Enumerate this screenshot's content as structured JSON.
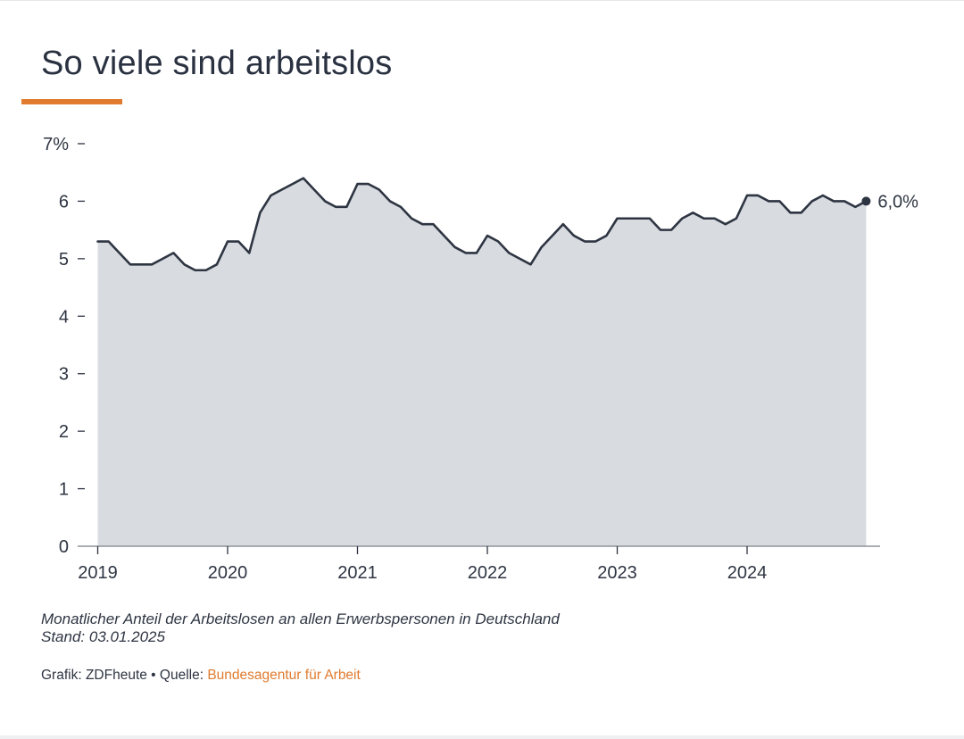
{
  "title": "So viele sind arbeitslos",
  "note": {
    "line1": "Monatlicher Anteil der Arbeitslosen an allen Erwerbspersonen in Deutschland",
    "line2": "Stand: 03.01.2025"
  },
  "source": {
    "prefix": "Grafik: ZDFheute • Quelle: ",
    "link_text": "Bundesagentur für Arbeit"
  },
  "colors": {
    "accent": "#e07b2f",
    "line": "#2e3542",
    "area": "#d8dbe0"
  },
  "chart_data": {
    "type": "area",
    "ylim": [
      0,
      7
    ],
    "y_ticks": [
      {
        "value": 7,
        "label": "7%"
      },
      {
        "value": 6,
        "label": "6"
      },
      {
        "value": 5,
        "label": "5"
      },
      {
        "value": 4,
        "label": "4"
      },
      {
        "value": 3,
        "label": "3"
      },
      {
        "value": 2,
        "label": "2"
      },
      {
        "value": 1,
        "label": "1"
      },
      {
        "value": 0,
        "label": "0"
      }
    ],
    "x_ticks": [
      "2019",
      "2020",
      "2021",
      "2022",
      "2023",
      "2024"
    ],
    "x_start": "2019-01",
    "grid": false,
    "end_label": "6,0%",
    "values": [
      5.3,
      5.3,
      5.1,
      4.9,
      4.9,
      4.9,
      5.0,
      5.1,
      4.9,
      4.8,
      4.8,
      4.9,
      5.3,
      5.3,
      5.1,
      5.8,
      6.1,
      6.2,
      6.3,
      6.4,
      6.2,
      6.0,
      5.9,
      5.9,
      6.3,
      6.3,
      6.2,
      6.0,
      5.9,
      5.7,
      5.6,
      5.6,
      5.4,
      5.2,
      5.1,
      5.1,
      5.4,
      5.3,
      5.1,
      5.0,
      4.9,
      5.2,
      5.4,
      5.6,
      5.4,
      5.3,
      5.3,
      5.4,
      5.7,
      5.7,
      5.7,
      5.7,
      5.5,
      5.5,
      5.7,
      5.8,
      5.7,
      5.7,
      5.6,
      5.7,
      6.1,
      6.1,
      6.0,
      6.0,
      5.8,
      5.8,
      6.0,
      6.1,
      6.0,
      6.0,
      5.9,
      6.0
    ]
  }
}
